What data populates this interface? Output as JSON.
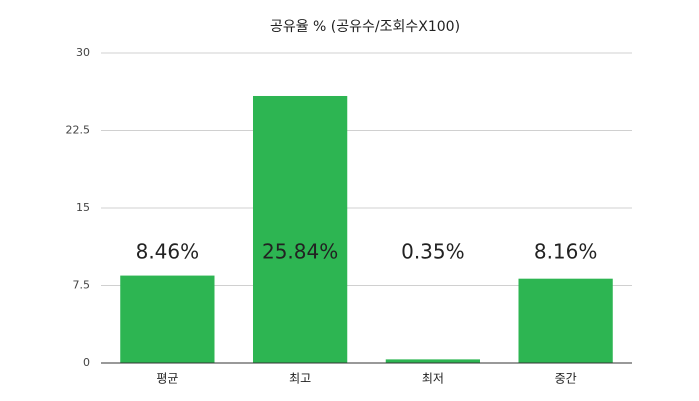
{
  "chart_data": {
    "type": "bar",
    "title": "공유율 % (공유수/조회수X100)",
    "categories": [
      "평균",
      "최고",
      "최저",
      "중간"
    ],
    "values": [
      8.46,
      25.84,
      0.35,
      8.16
    ],
    "value_labels": [
      "8.46%",
      "25.84%",
      "0.35%",
      "8.16%"
    ],
    "color": "#2db552",
    "ylim": [
      0,
      30
    ],
    "yticks": [
      0,
      7.5,
      15,
      22.5,
      30
    ],
    "grid": true
  }
}
